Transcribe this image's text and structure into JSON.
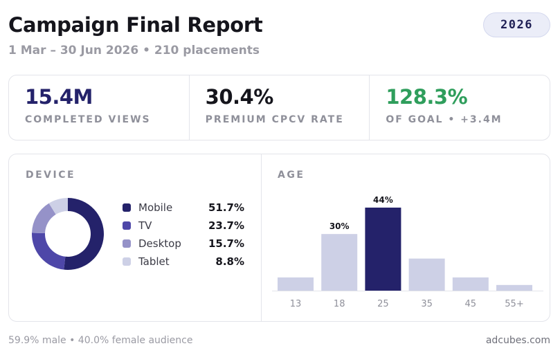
{
  "header": {
    "title": "Campaign Final Report",
    "subtitle": "1 Mar – 30 Jun 2026 • 210 placements",
    "year_badge": "2026"
  },
  "kpis": [
    {
      "value": "15.4M",
      "label": "COMPLETED VIEWS",
      "color": "#24226a"
    },
    {
      "value": "30.4%",
      "label": "PREMIUM CPCV RATE",
      "color": "#15151c"
    },
    {
      "value": "128.3%",
      "label": "OF GOAL • +3.4M",
      "color": "#2f9e5c"
    }
  ],
  "device": {
    "title": "DEVICE",
    "chart_data": {
      "type": "pie",
      "donut": true,
      "categories": [
        "Mobile",
        "TV",
        "Desktop",
        "Tablet"
      ],
      "values": [
        51.7,
        23.7,
        15.7,
        8.8
      ],
      "value_labels": [
        "51.7%",
        "23.7%",
        "15.7%",
        "8.8%"
      ],
      "colors": [
        "#24226a",
        "#4e47a8",
        "#9592c8",
        "#cdd0e6"
      ]
    }
  },
  "age": {
    "title": "AGE",
    "chart_data": {
      "type": "bar",
      "categories": [
        "13",
        "18",
        "25",
        "35",
        "45",
        "55+"
      ],
      "values": [
        7,
        30,
        44,
        17,
        7,
        3
      ],
      "data_labels": [
        "",
        "30%",
        "44%",
        "",
        "",
        ""
      ],
      "highlight_index": 2,
      "colors": {
        "default": "#cdd0e6",
        "highlight": "#24226a"
      },
      "ylim": [
        0,
        44
      ]
    }
  },
  "footer": {
    "audience": "59.9% male • 40.0% female audience",
    "brand": "adcubes.com"
  }
}
